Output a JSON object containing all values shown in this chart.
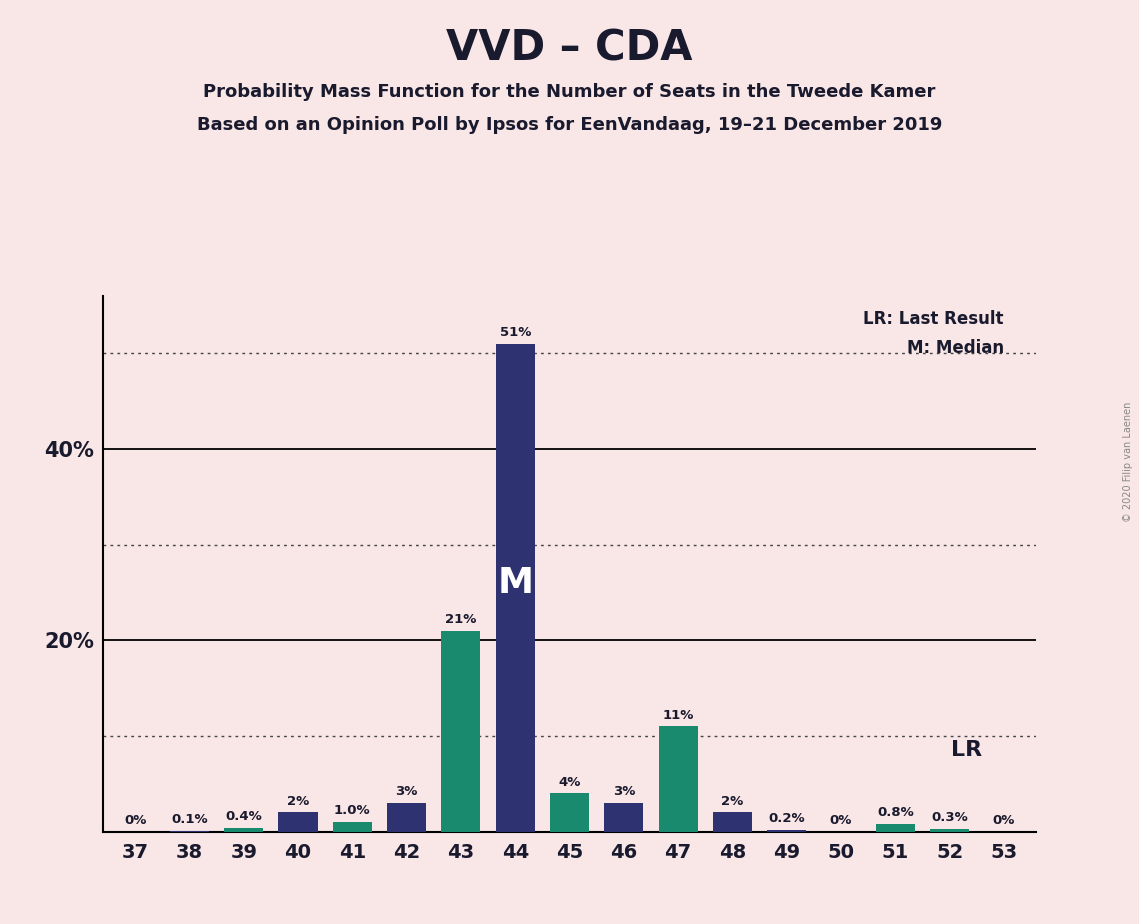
{
  "title": "VVD – CDA",
  "subtitle1": "Probability Mass Function for the Number of Seats in the Tweede Kamer",
  "subtitle2": "Based on an Opinion Poll by Ipsos for EenVandaag, 19–21 December 2019",
  "background_color": "#f9e6e6",
  "seats": [
    37,
    38,
    39,
    40,
    41,
    42,
    43,
    44,
    45,
    46,
    47,
    48,
    49,
    50,
    51,
    52,
    53
  ],
  "values": [
    0.0,
    0.1,
    0.4,
    2.0,
    1.0,
    3.0,
    21.0,
    51.0,
    4.0,
    3.0,
    11.0,
    2.0,
    0.2,
    0.0,
    0.8,
    0.3,
    0.0
  ],
  "bar_colors": [
    "#2e3270",
    "#2e3270",
    "#1a8a6e",
    "#2e3270",
    "#1a8a6e",
    "#2e3270",
    "#1a8a6e",
    "#2e3270",
    "#1a8a6e",
    "#2e3270",
    "#1a8a6e",
    "#2e3270",
    "#2e3270",
    "#2e3270",
    "#1a8a6e",
    "#1a8a6e",
    "#2e3270"
  ],
  "labels": [
    "0%",
    "0.1%",
    "0.4%",
    "2%",
    "1.0%",
    "3%",
    "21%",
    "51%",
    "4%",
    "3%",
    "11%",
    "2%",
    "0.2%",
    "0%",
    "0.8%",
    "0.3%",
    "0%"
  ],
  "ylim": [
    0,
    56
  ],
  "median_seat": 44,
  "lr_seat": 48,
  "dotted_line_values": [
    10,
    30,
    50
  ],
  "solid_line_values": [
    20,
    40
  ],
  "legend_lr_text": "LR: Last Result",
  "legend_m_text": "M: Median",
  "copyright_text": "© 2020 Filip van Laenen",
  "navy_color": "#2e3270",
  "teal_color": "#1a8a6e",
  "median_label_color": "#ffffff",
  "text_color": "#1a1a2e",
  "lr_label": "LR"
}
